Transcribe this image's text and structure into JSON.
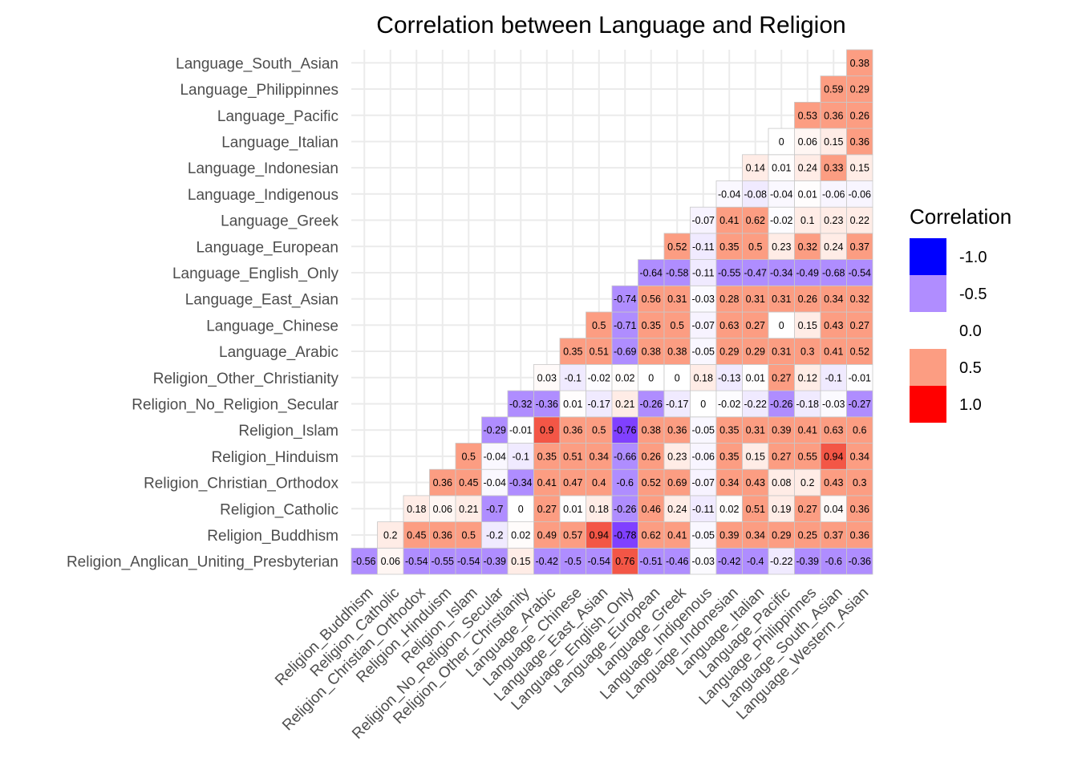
{
  "chart_data": {
    "type": "heatmap",
    "title": "Correlation between Language and Religion",
    "x_categories": [
      "Religion_Buddhism",
      "Religion_Catholic",
      "Religion_Christian_Orthodox",
      "Religion_Hinduism",
      "Religion_Islam",
      "Religion_No_Religion_Secular",
      "Religion_Other_Christianity",
      "Language_Arabic",
      "Language_Chinese",
      "Language_East_Asian",
      "Language_English_Only",
      "Language_European",
      "Language_Greek",
      "Language_Indigenous",
      "Language_Indonesian",
      "Language_Italian",
      "Language_Pacific",
      "Language_Philippinnes",
      "Language_South_Asian",
      "Language_Western_Asian"
    ],
    "y_categories": [
      "Religion_Anglican_Uniting_Presbyterian",
      "Religion_Buddhism",
      "Religion_Catholic",
      "Religion_Christian_Orthodox",
      "Religion_Hinduism",
      "Religion_Islam",
      "Religion_No_Religion_Secular",
      "Religion_Other_Christianity",
      "Language_Arabic",
      "Language_Chinese",
      "Language_East_Asian",
      "Language_English_Only",
      "Language_European",
      "Language_Greek",
      "Language_Indigenous",
      "Language_Indonesian",
      "Language_Italian",
      "Language_Pacific",
      "Language_Philippinnes",
      "Language_South_Asian"
    ],
    "rows": [
      [
        "-0.56",
        "0.06",
        "-0.54",
        "-0.55",
        "-0.54",
        "-0.39",
        "0.15",
        "-0.42",
        "-0.5",
        "-0.54",
        "0.76",
        "-0.51",
        "-0.46",
        "-0.03",
        "-0.42",
        "-0.4",
        "-0.22",
        "-0.39",
        "-0.6",
        "-0.36"
      ],
      [
        "0.2",
        "0.45",
        "0.36",
        "0.5",
        "-0.2",
        "0.02",
        "0.49",
        "0.57",
        "0.94",
        "-0.78",
        "0.62",
        "0.41",
        "-0.05",
        "0.39",
        "0.34",
        "0.29",
        "0.25",
        "0.37",
        "0.36"
      ],
      [
        "0.18",
        "0.06",
        "0.21",
        "-0.7",
        "0",
        "0.27",
        "0.01",
        "0.18",
        "-0.26",
        "0.46",
        "0.24",
        "-0.11",
        "0.02",
        "0.51",
        "0.19",
        "0.27",
        "0.04",
        "0.36"
      ],
      [
        "0.36",
        "0.45",
        "-0.04",
        "-0.34",
        "0.41",
        "0.47",
        "0.4",
        "-0.6",
        "0.52",
        "0.69",
        "-0.07",
        "0.34",
        "0.43",
        "0.08",
        "0.2",
        "0.43",
        "0.3"
      ],
      [
        "0.5",
        "-0.04",
        "-0.1",
        "0.35",
        "0.51",
        "0.34",
        "-0.66",
        "0.26",
        "0.23",
        "-0.06",
        "0.35",
        "0.15",
        "0.27",
        "0.55",
        "0.94",
        "0.34"
      ],
      [
        "-0.29",
        "-0.01",
        "0.9",
        "0.36",
        "0.5",
        "-0.76",
        "0.38",
        "0.36",
        "-0.05",
        "0.35",
        "0.31",
        "0.39",
        "0.41",
        "0.63",
        "0.6"
      ],
      [
        "-0.32",
        "-0.36",
        "0.01",
        "-0.17",
        "0.21",
        "-0.26",
        "-0.17",
        "0",
        "-0.02",
        "-0.22",
        "-0.26",
        "-0.18",
        "-0.03",
        "-0.27"
      ],
      [
        "0.03",
        "-0.1",
        "-0.02",
        "0.02",
        "0",
        "0",
        "0.18",
        "-0.13",
        "0.01",
        "0.27",
        "0.12",
        "-0.1",
        "-0.01"
      ],
      [
        "0.35",
        "0.51",
        "-0.69",
        "0.38",
        "0.38",
        "-0.05",
        "0.29",
        "0.29",
        "0.31",
        "0.3",
        "0.41",
        "0.52"
      ],
      [
        "0.5",
        "-0.71",
        "0.35",
        "0.5",
        "-0.07",
        "0.63",
        "0.27",
        "0",
        "0.15",
        "0.43",
        "0.27"
      ],
      [
        "-0.74",
        "0.56",
        "0.31",
        "-0.03",
        "0.28",
        "0.31",
        "0.31",
        "0.26",
        "0.34",
        "0.32"
      ],
      [
        "-0.64",
        "-0.58",
        "-0.11",
        "-0.55",
        "-0.47",
        "-0.34",
        "-0.49",
        "-0.68",
        "-0.54"
      ],
      [
        "0.52",
        "-0.11",
        "0.35",
        "0.5",
        "0.23",
        "0.32",
        "0.24",
        "0.37"
      ],
      [
        "-0.07",
        "0.41",
        "0.62",
        "-0.02",
        "0.1",
        "0.23",
        "0.22"
      ],
      [
        "-0.04",
        "-0.08",
        "-0.04",
        "0.01",
        "-0.06",
        "-0.06"
      ],
      [
        "0.14",
        "0.01",
        "0.24",
        "0.33",
        "0.15"
      ],
      [
        "0",
        "0.06",
        "0.15",
        "0.36"
      ],
      [
        "0.53",
        "0.36",
        "0.26"
      ],
      [
        "0.59",
        "0.29"
      ],
      [
        "0.38"
      ]
    ],
    "legend": {
      "title": "Correlation",
      "labels": [
        "-1.0",
        "-0.5",
        "0.0",
        "0.5",
        "1.0"
      ],
      "values": [
        -1.0,
        -0.5,
        0.0,
        0.5,
        1.0
      ],
      "placement": "right"
    },
    "colors": {
      "low": "#0000FF",
      "mid": "#FFFFFF",
      "high": "#FF0000",
      "limits": [
        -1,
        1
      ]
    },
    "grid": true
  }
}
